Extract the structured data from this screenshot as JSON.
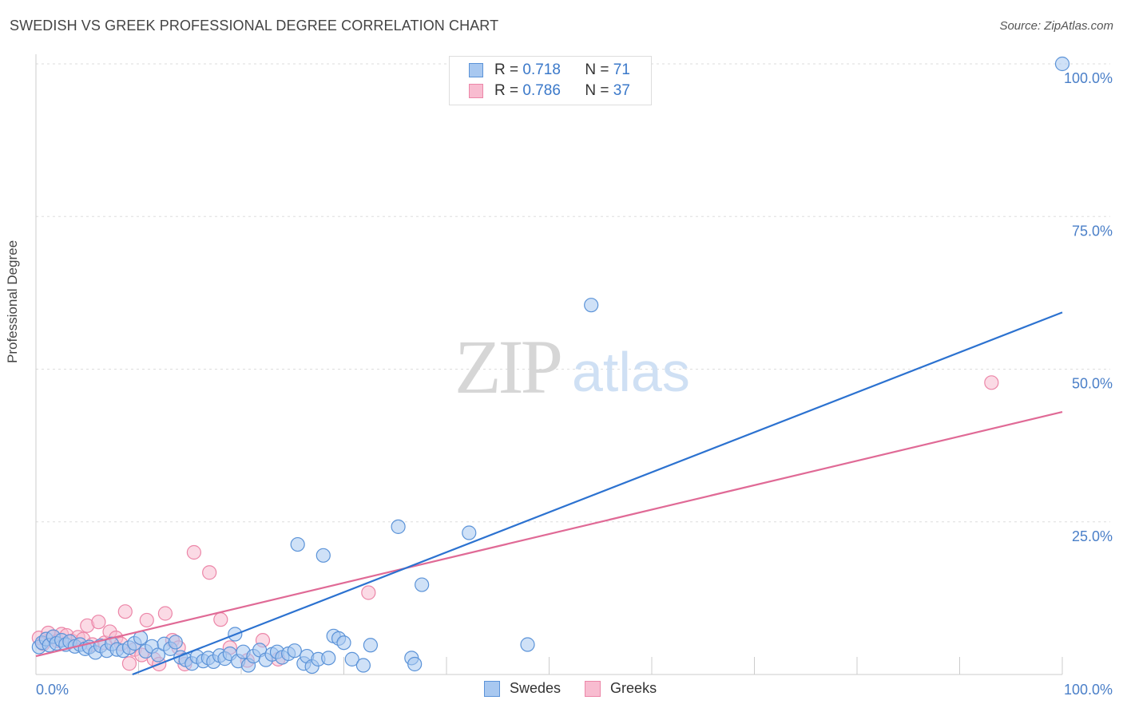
{
  "header": {
    "title": "SWEDISH VS GREEK PROFESSIONAL DEGREE CORRELATION CHART",
    "source": "Source: ZipAtlas.com"
  },
  "legend_top": {
    "rows": [
      {
        "r_label": "R =",
        "r_value": "0.718",
        "n_label": "N =",
        "n_value": "71"
      },
      {
        "r_label": "R =",
        "r_value": "0.786",
        "n_label": "N =",
        "n_value": "37"
      }
    ]
  },
  "legend_bottom": {
    "items": [
      {
        "label": "Swedes"
      },
      {
        "label": "Greeks"
      }
    ]
  },
  "watermark": {
    "zip": "ZIP",
    "atlas": "atlas"
  },
  "colors": {
    "swedes_fill": "#a8c8f0",
    "swedes_stroke": "#5b93d8",
    "swedes_line": "#2c72d0",
    "greeks_fill": "#f8bcd0",
    "greeks_stroke": "#ec86a8",
    "greeks_line": "#e06a96",
    "tick_label": "#4a7fc8",
    "grid": "#dddddd"
  },
  "chart_data": {
    "type": "scatter",
    "title": "SWEDISH VS GREEK PROFESSIONAL DEGREE CORRELATION CHART",
    "xlabel": "",
    "ylabel": "Professional Degree",
    "xlim": [
      0,
      100
    ],
    "ylim": [
      0,
      100
    ],
    "x_tick_labels": [
      {
        "value": 0,
        "label": "0.0%"
      },
      {
        "value": 100,
        "label": "100.0%"
      }
    ],
    "y_tick_labels": [
      {
        "value": 25,
        "label": "25.0%"
      },
      {
        "value": 50,
        "label": "50.0%"
      },
      {
        "value": 75,
        "label": "75.0%"
      },
      {
        "value": 100,
        "label": "100.0%"
      }
    ],
    "series": [
      {
        "name": "Swedes",
        "r": 0.718,
        "n": 71,
        "trend": [
          [
            9.4,
            0
          ],
          [
            100,
            59.3
          ]
        ],
        "points": [
          [
            0.3,
            4.5
          ],
          [
            0.6,
            5.2
          ],
          [
            1.0,
            5.8
          ],
          [
            1.3,
            4.8
          ],
          [
            1.7,
            6.2
          ],
          [
            2.0,
            5.1
          ],
          [
            2.5,
            5.6
          ],
          [
            2.9,
            4.9
          ],
          [
            3.3,
            5.4
          ],
          [
            3.8,
            4.6
          ],
          [
            4.3,
            4.9
          ],
          [
            4.8,
            4.2
          ],
          [
            5.2,
            4.5
          ],
          [
            5.8,
            3.6
          ],
          [
            6.3,
            4.7
          ],
          [
            6.9,
            3.9
          ],
          [
            7.4,
            5.0
          ],
          [
            7.9,
            4.1
          ],
          [
            8.5,
            3.9
          ],
          [
            9.1,
            4.4
          ],
          [
            9.6,
            5.1
          ],
          [
            10.2,
            6.0
          ],
          [
            10.7,
            3.8
          ],
          [
            11.3,
            4.6
          ],
          [
            11.9,
            3.2
          ],
          [
            12.5,
            5.0
          ],
          [
            13.1,
            4.2
          ],
          [
            13.6,
            5.3
          ],
          [
            14.1,
            2.8
          ],
          [
            14.6,
            2.4
          ],
          [
            15.2,
            1.8
          ],
          [
            15.7,
            2.9
          ],
          [
            16.3,
            2.2
          ],
          [
            16.8,
            2.7
          ],
          [
            17.3,
            2.1
          ],
          [
            17.9,
            3.1
          ],
          [
            18.4,
            2.6
          ],
          [
            18.9,
            3.4
          ],
          [
            19.4,
            6.6
          ],
          [
            19.7,
            2.2
          ],
          [
            20.2,
            3.7
          ],
          [
            20.7,
            1.5
          ],
          [
            21.2,
            3.0
          ],
          [
            21.8,
            4.0
          ],
          [
            22.4,
            2.4
          ],
          [
            23.0,
            3.3
          ],
          [
            23.5,
            3.7
          ],
          [
            24.0,
            2.8
          ],
          [
            24.6,
            3.4
          ],
          [
            25.2,
            3.9
          ],
          [
            25.5,
            21.3
          ],
          [
            26.1,
            1.8
          ],
          [
            26.4,
            3.0
          ],
          [
            26.9,
            1.3
          ],
          [
            27.5,
            2.5
          ],
          [
            28.0,
            19.5
          ],
          [
            28.5,
            2.7
          ],
          [
            29.0,
            6.3
          ],
          [
            29.5,
            5.9
          ],
          [
            30.0,
            5.2
          ],
          [
            30.8,
            2.5
          ],
          [
            31.9,
            1.5
          ],
          [
            32.6,
            4.8
          ],
          [
            35.3,
            24.2
          ],
          [
            36.6,
            2.7
          ],
          [
            36.9,
            1.7
          ],
          [
            37.6,
            14.7
          ],
          [
            42.2,
            23.2
          ],
          [
            47.9,
            4.9
          ],
          [
            54.1,
            60.5
          ],
          [
            100.0,
            100.0
          ]
        ]
      },
      {
        "name": "Greeks",
        "r": 0.786,
        "n": 37,
        "trend": [
          [
            0,
            3.0
          ],
          [
            100,
            43.0
          ]
        ],
        "points": [
          [
            0.3,
            6.0
          ],
          [
            0.7,
            5.0
          ],
          [
            1.2,
            6.8
          ],
          [
            1.6,
            6.1
          ],
          [
            2.1,
            5.5
          ],
          [
            2.5,
            6.6
          ],
          [
            3.0,
            6.4
          ],
          [
            3.5,
            5.5
          ],
          [
            4.1,
            6.1
          ],
          [
            4.6,
            5.8
          ],
          [
            5.0,
            8.0
          ],
          [
            5.5,
            4.9
          ],
          [
            6.1,
            8.6
          ],
          [
            6.7,
            5.2
          ],
          [
            7.2,
            7.0
          ],
          [
            7.8,
            6.0
          ],
          [
            8.3,
            5.0
          ],
          [
            8.7,
            10.3
          ],
          [
            9.1,
            1.8
          ],
          [
            9.6,
            4.1
          ],
          [
            10.3,
            3.2
          ],
          [
            10.8,
            8.9
          ],
          [
            11.5,
            2.5
          ],
          [
            12.0,
            1.7
          ],
          [
            12.6,
            10.0
          ],
          [
            13.3,
            5.6
          ],
          [
            13.9,
            4.4
          ],
          [
            14.5,
            1.7
          ],
          [
            15.4,
            20.0
          ],
          [
            16.9,
            16.7
          ],
          [
            18.0,
            9.0
          ],
          [
            18.9,
            4.4
          ],
          [
            20.6,
            2.3
          ],
          [
            22.1,
            5.6
          ],
          [
            23.6,
            2.5
          ],
          [
            32.4,
            13.4
          ],
          [
            93.1,
            47.8
          ]
        ]
      }
    ]
  }
}
